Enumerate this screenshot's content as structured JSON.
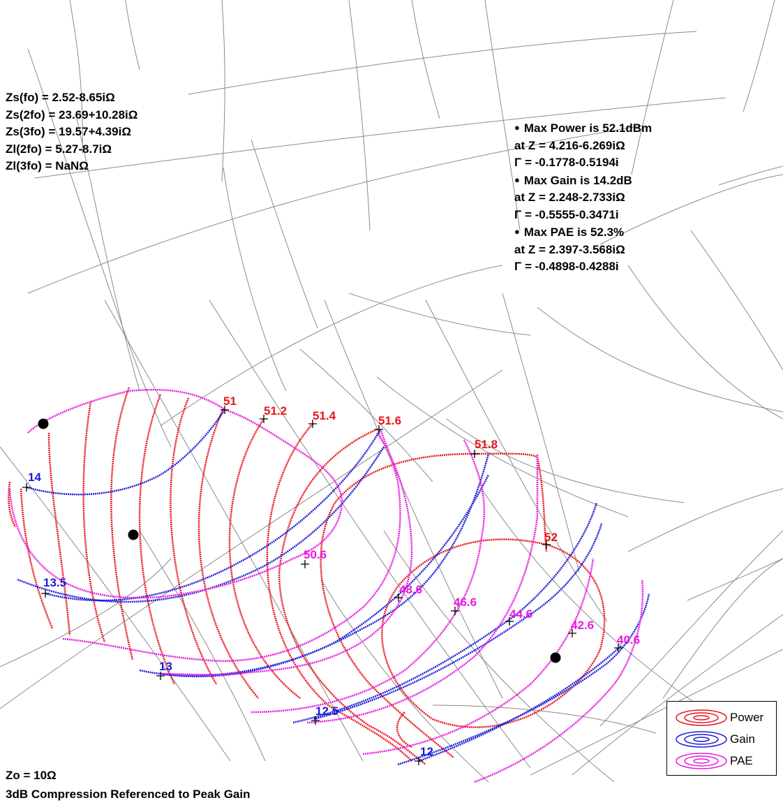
{
  "impedances": [
    "Zs(fo) = 2.52-8.65iΩ",
    "Zs(2fo) = 23.69+10.28iΩ",
    "Zs(3fo) = 19.57+4.39iΩ",
    "Zl(2fo) = 5.27-8.7iΩ",
    "Zl(3fo) = NaNΩ"
  ],
  "maxima": [
    {
      "text": "Max Power is 52.1dBm",
      "bullet": true
    },
    {
      "text": "at Z = 4.216-6.269iΩ",
      "bullet": false
    },
    {
      "text": "Γ = -0.1778-0.5194i",
      "bullet": false
    },
    {
      "text": "Max Gain is 14.2dB",
      "bullet": true
    },
    {
      "text": "at Z = 2.248-2.733iΩ",
      "bullet": false
    },
    {
      "text": "Γ = -0.5555-0.3471i",
      "bullet": false
    },
    {
      "text": "Max PAE is 52.3%",
      "bullet": true
    },
    {
      "text": "at Z = 2.397-3.568iΩ",
      "bullet": false
    },
    {
      "text": "Γ = -0.4898-0.4288i",
      "bullet": false
    }
  ],
  "footer": {
    "zo": "Zo = 10Ω",
    "note": "3dB Compression Referenced to Peak Gain"
  },
  "colors": {
    "power": "#e8141b",
    "gain": "#1a1ad6",
    "pae": "#e81ae0",
    "grid": "#8a8a8a"
  },
  "chart_data": {
    "type": "contour",
    "legend": {
      "placement": "bottom-right",
      "entries": [
        "Power",
        "Gain",
        "PAE"
      ]
    },
    "series": [
      {
        "name": "Power",
        "unit": "dBm",
        "levels": [
          51,
          51.2,
          51.4,
          51.6,
          51.8,
          52
        ]
      },
      {
        "name": "Gain",
        "unit": "dB",
        "levels": [
          12,
          12.5,
          13,
          13.5,
          14
        ]
      },
      {
        "name": "PAE",
        "unit": "%",
        "levels": [
          40.6,
          42.6,
          44.6,
          46.6,
          48.6,
          50.6
        ]
      }
    ],
    "contour_labels": [
      {
        "series": "Power",
        "text": "51"
      },
      {
        "series": "Power",
        "text": "51.2"
      },
      {
        "series": "Power",
        "text": "51.4"
      },
      {
        "series": "Power",
        "text": "51.6"
      },
      {
        "series": "Power",
        "text": "51.8"
      },
      {
        "series": "Power",
        "text": "52"
      },
      {
        "series": "Gain",
        "text": "14"
      },
      {
        "series": "Gain",
        "text": "13.5"
      },
      {
        "series": "Gain",
        "text": "13"
      },
      {
        "series": "Gain",
        "text": "12.5"
      },
      {
        "series": "Gain",
        "text": "12"
      },
      {
        "series": "PAE",
        "text": "50.6"
      },
      {
        "series": "PAE",
        "text": "48.6"
      },
      {
        "series": "PAE",
        "text": "46.6"
      },
      {
        "series": "PAE",
        "text": "44.6"
      },
      {
        "series": "PAE",
        "text": "42.6"
      },
      {
        "series": "PAE",
        "text": "40.6"
      }
    ],
    "maxima_gamma": [
      {
        "series": "Power",
        "re": -0.1778,
        "im": -0.5194
      },
      {
        "series": "Gain",
        "re": -0.5555,
        "im": -0.3471
      },
      {
        "series": "PAE",
        "re": -0.4898,
        "im": -0.4288
      }
    ]
  }
}
